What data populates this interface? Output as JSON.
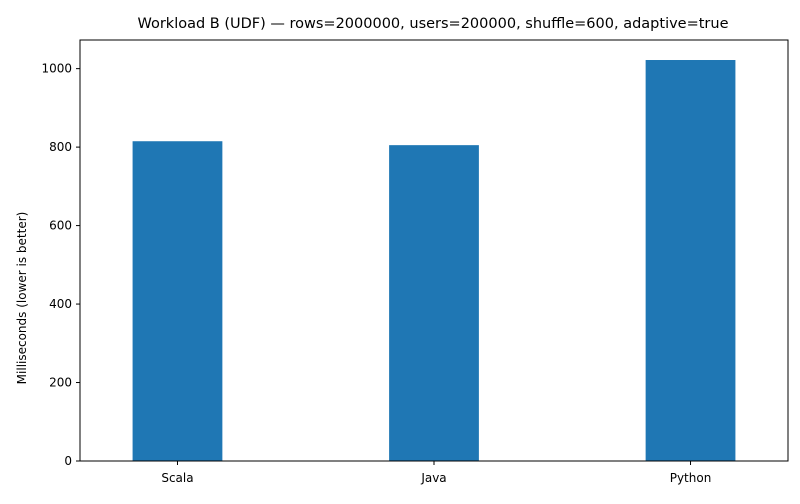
{
  "chart_data": {
    "type": "bar",
    "title": "Workload B (UDF) — rows=2000000, users=200000, shuffle=600, adaptive=true",
    "xlabel": "",
    "ylabel": "Milliseconds (lower is better)",
    "categories": [
      "Scala",
      "Java",
      "Python"
    ],
    "values": [
      815,
      805,
      1022
    ],
    "ylim": [
      0,
      1073
    ],
    "yticks": [
      0,
      200,
      400,
      600,
      800,
      1000
    ],
    "grid": false,
    "legend": "none",
    "bar_color": "#1f77b4"
  }
}
